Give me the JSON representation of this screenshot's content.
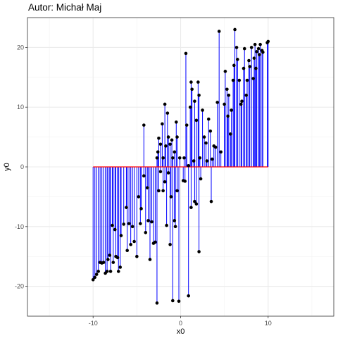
{
  "chart_data": {
    "type": "scatter",
    "title": "Autor: Michał Maj",
    "xlabel": "x0",
    "ylabel": "y0",
    "xlim": [
      -17.5,
      17.5
    ],
    "ylim": [
      -25,
      25
    ],
    "x_ticks": [
      -10,
      0,
      10
    ],
    "x_tick_labels": [
      "-10",
      "0",
      "10"
    ],
    "y_ticks": [
      -20,
      -10,
      0,
      10,
      20
    ],
    "y_tick_labels": [
      "-20",
      "-10",
      "0",
      "10",
      "20"
    ],
    "grid": true,
    "baseline": {
      "x_from": -10,
      "x_to": 10,
      "y": 0,
      "color": "#ff0000"
    },
    "segment_color": "#0000ff",
    "point_color": "#000000",
    "points": [
      {
        "x": -10.0,
        "y": -18.9
      },
      {
        "x": -9.8,
        "y": -18.5
      },
      {
        "x": -9.6,
        "y": -18.0
      },
      {
        "x": -9.4,
        "y": -17.5
      },
      {
        "x": -9.2,
        "y": -16.0
      },
      {
        "x": -9.0,
        "y": -16.1
      },
      {
        "x": -8.8,
        "y": -16.0
      },
      {
        "x": -8.6,
        "y": -17.8
      },
      {
        "x": -8.4,
        "y": -17.5
      },
      {
        "x": -8.3,
        "y": -15.5
      },
      {
        "x": -8.1,
        "y": -14.8
      },
      {
        "x": -8.0,
        "y": -17.5
      },
      {
        "x": -7.8,
        "y": -9.8
      },
      {
        "x": -7.7,
        "y": -16.0
      },
      {
        "x": -7.5,
        "y": -10.5
      },
      {
        "x": -7.4,
        "y": -15.0
      },
      {
        "x": -7.2,
        "y": -15.2
      },
      {
        "x": -7.1,
        "y": -17.5
      },
      {
        "x": -6.9,
        "y": -16.8
      },
      {
        "x": -6.8,
        "y": -11.5
      },
      {
        "x": -6.5,
        "y": -9.6
      },
      {
        "x": -6.2,
        "y": -6.8
      },
      {
        "x": -6.1,
        "y": -14.0
      },
      {
        "x": -5.9,
        "y": -9.5
      },
      {
        "x": -5.7,
        "y": -13.0
      },
      {
        "x": -5.5,
        "y": -10.0
      },
      {
        "x": -5.3,
        "y": -12.5
      },
      {
        "x": -5.0,
        "y": -15.0
      },
      {
        "x": -4.8,
        "y": -5.0
      },
      {
        "x": -4.6,
        "y": -9.5
      },
      {
        "x": -4.5,
        "y": -7.0
      },
      {
        "x": -4.2,
        "y": -1.5
      },
      {
        "x": -4.0,
        "y": -11.0
      },
      {
        "x": -3.8,
        "y": -3.5
      },
      {
        "x": -3.7,
        "y": -9.0
      },
      {
        "x": -3.5,
        "y": -15.5
      },
      {
        "x": -3.3,
        "y": -9.2
      },
      {
        "x": -3.1,
        "y": -12.8
      },
      {
        "x": -2.9,
        "y": -12.6
      },
      {
        "x": -2.7,
        "y": -22.8
      },
      {
        "x": -2.5,
        "y": -4.0
      },
      {
        "x": -2.3,
        "y": -0.8
      },
      {
        "x": -2.0,
        "y": -4.0
      },
      {
        "x": -1.8,
        "y": -2.5
      },
      {
        "x": -1.6,
        "y": -9.8
      },
      {
        "x": -1.4,
        "y": -1.0
      },
      {
        "x": -1.2,
        "y": -13.0
      },
      {
        "x": -1.1,
        "y": -5.0
      },
      {
        "x": -0.9,
        "y": -22.4
      },
      {
        "x": -0.7,
        "y": -9.0
      },
      {
        "x": -0.6,
        "y": -10.0
      },
      {
        "x": -0.4,
        "y": -4.0
      },
      {
        "x": -0.2,
        "y": -22.5
      },
      {
        "x": -4.2,
        "y": 7.0
      },
      {
        "x": -2.7,
        "y": 1.5
      },
      {
        "x": -2.6,
        "y": 2.5
      },
      {
        "x": -2.5,
        "y": 4.8
      },
      {
        "x": -2.3,
        "y": 3.8
      },
      {
        "x": -2.1,
        "y": 7.2
      },
      {
        "x": -2.0,
        "y": 1.5
      },
      {
        "x": -1.8,
        "y": 10.5
      },
      {
        "x": -1.7,
        "y": 3.5
      },
      {
        "x": -1.5,
        "y": 9.0
      },
      {
        "x": -1.4,
        "y": 5.0
      },
      {
        "x": -1.2,
        "y": 3.8
      },
      {
        "x": -1.0,
        "y": 4.5
      },
      {
        "x": -0.9,
        "y": 1.5
      },
      {
        "x": -0.7,
        "y": 2.5
      },
      {
        "x": -0.5,
        "y": 7.5
      },
      {
        "x": -0.4,
        "y": 5.0
      },
      {
        "x": -0.1,
        "y": 1.5
      },
      {
        "x": 0.4,
        "y": 1.5
      },
      {
        "x": 0.6,
        "y": 19.0
      },
      {
        "x": 0.7,
        "y": 7.0
      },
      {
        "x": 0.9,
        "y": 0.2
      },
      {
        "x": 1.1,
        "y": 10.0
      },
      {
        "x": 1.2,
        "y": 14.2
      },
      {
        "x": 1.3,
        "y": 13.0
      },
      {
        "x": 1.5,
        "y": 1.0
      },
      {
        "x": 1.6,
        "y": 11.0
      },
      {
        "x": 1.8,
        "y": 7.8
      },
      {
        "x": 2.0,
        "y": 14.2
      },
      {
        "x": 2.1,
        "y": 12.0
      },
      {
        "x": 2.2,
        "y": 1.5
      },
      {
        "x": 2.5,
        "y": 9.5
      },
      {
        "x": 2.7,
        "y": 5.0
      },
      {
        "x": 2.9,
        "y": 4.0
      },
      {
        "x": 3.0,
        "y": 1.0
      },
      {
        "x": 3.2,
        "y": 8.0
      },
      {
        "x": 3.4,
        "y": 6.0
      },
      {
        "x": 3.6,
        "y": 1.3
      },
      {
        "x": 3.8,
        "y": 3.5
      },
      {
        "x": 4.0,
        "y": 3.3
      },
      {
        "x": 4.2,
        "y": 10.8
      },
      {
        "x": 4.4,
        "y": 22.7
      },
      {
        "x": 4.6,
        "y": 2.5
      },
      {
        "x": 0.3,
        "y": -2.3
      },
      {
        "x": 0.5,
        "y": -2.4
      },
      {
        "x": 0.9,
        "y": -21.6
      },
      {
        "x": 1.2,
        "y": -6.8
      },
      {
        "x": 1.6,
        "y": -5.8
      },
      {
        "x": 1.8,
        "y": -6.2
      },
      {
        "x": 2.1,
        "y": -14.2
      },
      {
        "x": 2.3,
        "y": -2.0
      },
      {
        "x": 3.5,
        "y": -5.8
      },
      {
        "x": 5.0,
        "y": 10.5
      },
      {
        "x": 5.1,
        "y": 16.0
      },
      {
        "x": 5.3,
        "y": 13.0
      },
      {
        "x": 5.4,
        "y": 8.5
      },
      {
        "x": 5.5,
        "y": 12.0
      },
      {
        "x": 5.7,
        "y": 5.5
      },
      {
        "x": 5.8,
        "y": 9.5
      },
      {
        "x": 6.0,
        "y": 14.5
      },
      {
        "x": 6.1,
        "y": 17.0
      },
      {
        "x": 6.2,
        "y": 23.0
      },
      {
        "x": 6.4,
        "y": 20.0
      },
      {
        "x": 6.5,
        "y": 18.0
      },
      {
        "x": 6.7,
        "y": 14.5
      },
      {
        "x": 6.9,
        "y": 10.5
      },
      {
        "x": 7.0,
        "y": 11.0
      },
      {
        "x": 7.2,
        "y": 16.5
      },
      {
        "x": 7.3,
        "y": 19.8
      },
      {
        "x": 7.5,
        "y": 12.0
      },
      {
        "x": 7.6,
        "y": 14.5
      },
      {
        "x": 7.8,
        "y": 17.8
      },
      {
        "x": 7.9,
        "y": 16.8
      },
      {
        "x": 8.1,
        "y": 20.0
      },
      {
        "x": 8.3,
        "y": 14.8
      },
      {
        "x": 8.4,
        "y": 18.2
      },
      {
        "x": 8.5,
        "y": 20.5
      },
      {
        "x": 8.6,
        "y": 16.5
      },
      {
        "x": 8.7,
        "y": 19.3
      },
      {
        "x": 8.9,
        "y": 19.8
      },
      {
        "x": 9.0,
        "y": 18.8
      },
      {
        "x": 9.1,
        "y": 20.5
      },
      {
        "x": 9.3,
        "y": 19.5
      },
      {
        "x": 9.4,
        "y": 19.2
      },
      {
        "x": 9.9,
        "y": 20.8
      },
      {
        "x": 10.0,
        "y": 21.0
      }
    ]
  }
}
